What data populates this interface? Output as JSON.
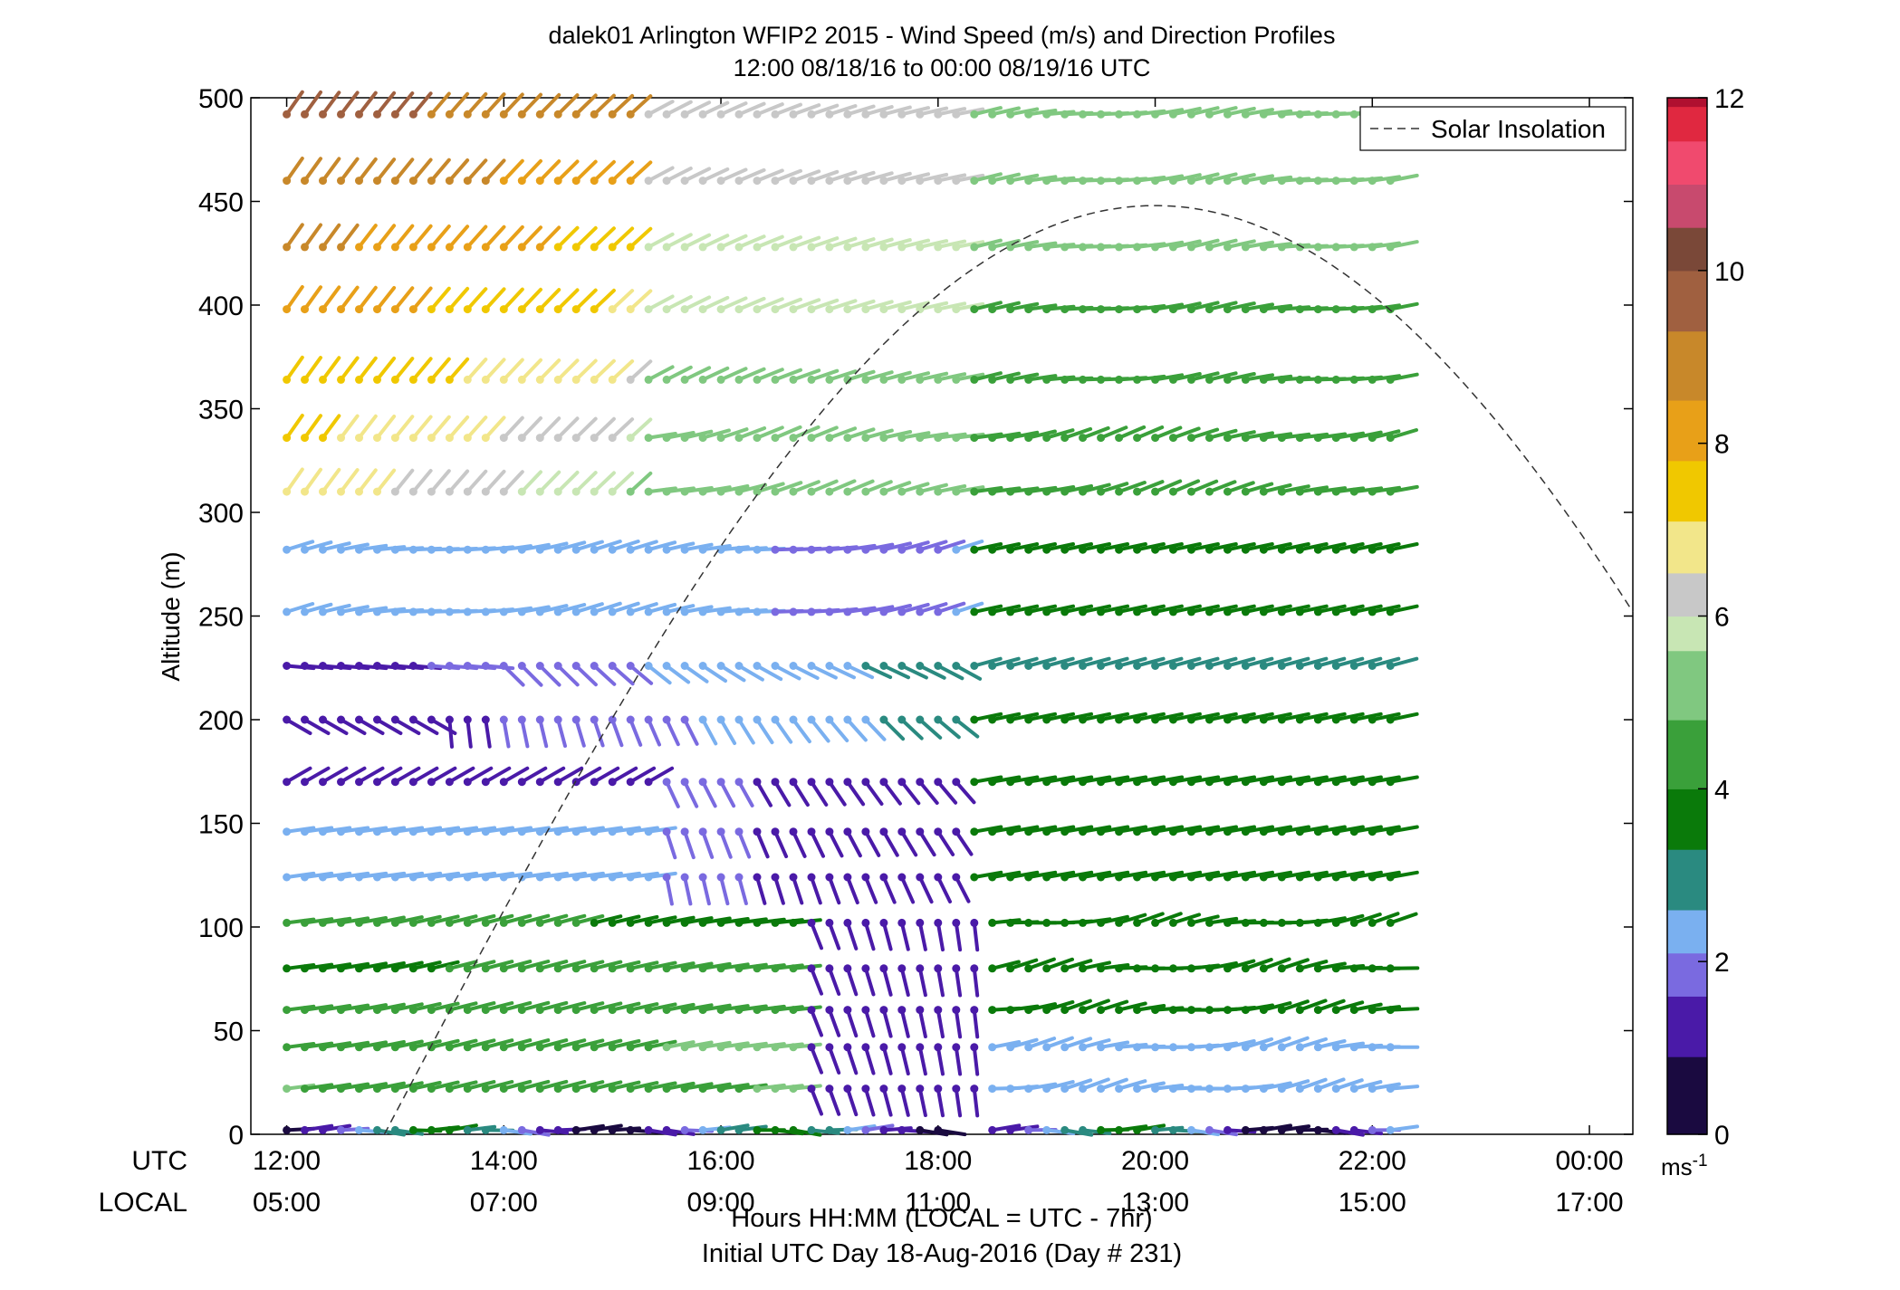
{
  "chart_data": {
    "type": "wind_barb_profile",
    "title": "dalek01 Arlington WFIP2 2015 - Wind Speed (m/s) and Direction Profiles",
    "subtitle": "12:00 08/18/16 to 00:00 08/19/16  UTC",
    "ylabel": "Altitude (m)",
    "xlabel": "Hours HH:MM  (LOCAL = UTC - 7hr)",
    "footer": "Initial UTC Day 18-Aug-2016 (Day # 231)",
    "row_label_utc": "UTC",
    "row_label_local": "LOCAL",
    "x_ticks_utc": [
      "12:00",
      "14:00",
      "16:00",
      "18:00",
      "20:00",
      "22:00",
      "00:00"
    ],
    "x_ticks_local": [
      "05:00",
      "07:00",
      "09:00",
      "11:00",
      "13:00",
      "15:00",
      "17:00"
    ],
    "xlim_hours": [
      11.67,
      24.4
    ],
    "ylim": [
      0,
      500
    ],
    "y_ticks": [
      "0",
      "50",
      "100",
      "150",
      "200",
      "250",
      "300",
      "350",
      "400",
      "450",
      "500"
    ],
    "legend": {
      "label": "Solar Insolation",
      "placement": "top-right"
    },
    "solar_insolation": {
      "peak_time_utc_hours": 20.0,
      "peak_altitude_equiv": 448,
      "zero_time_utc_hours": 12.9,
      "end_time_utc_hours": 24.4,
      "end_altitude_equiv": 250
    },
    "colorbar": {
      "min": 0,
      "max": 12,
      "ticks": [
        "0",
        "2",
        "4",
        "6",
        "8",
        "10",
        "12"
      ],
      "unit": "ms",
      "unit_exponent": "-1",
      "colors": [
        "#1a0a40",
        "#4a1aa8",
        "#7a6ae0",
        "#7ab0f0",
        "#2a8a80",
        "#0a7a0a",
        "#3aa03a",
        "#80c880",
        "#c8e6b4",
        "#c8c8c8",
        "#f2e68a",
        "#f0c800",
        "#e8a018",
        "#c8882a",
        "#a06040",
        "#7a4838",
        "#c84a6e",
        "#f04a6e",
        "#e02840",
        "#b01030",
        "#909090"
      ]
    },
    "altitudes_m": [
      2,
      22,
      42,
      60,
      80,
      102,
      124,
      146,
      170,
      200,
      226,
      252,
      282,
      310,
      336,
      364,
      398,
      428,
      460,
      492
    ],
    "time_step_minutes": 10,
    "start_time_utc_hours": 12.0,
    "num_times": 62
  }
}
